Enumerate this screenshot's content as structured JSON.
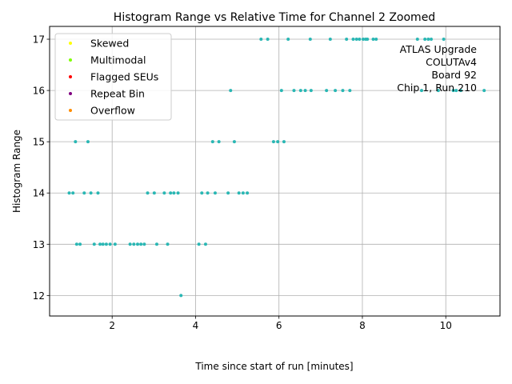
{
  "chart_data": {
    "type": "scatter",
    "title": "Histogram Range vs Relative Time for Channel 2 Zoomed",
    "xlabel": "Time since start of run [minutes]",
    "ylabel": "Histogram Range",
    "xlim": [
      0.5,
      11.3
    ],
    "ylim": [
      11.6,
      17.25
    ],
    "xticks": [
      2,
      4,
      6,
      8,
      10
    ],
    "yticks": [
      12,
      13,
      14,
      15,
      16,
      17
    ],
    "grid": true,
    "legend_position": "top-left",
    "legend": [
      {
        "label": "Skewed",
        "color": "#ffff00"
      },
      {
        "label": "Multimodal",
        "color": "#7fff00"
      },
      {
        "label": "Flagged SEUs",
        "color": "#ff0000"
      },
      {
        "label": "Repeat Bin",
        "color": "#800080"
      },
      {
        "label": "Overflow",
        "color": "#ff8c00"
      }
    ],
    "annotation_lines": [
      "ATLAS Upgrade",
      "COLUTAv4",
      "Board 92",
      "Chip 1, Run 210"
    ],
    "series": [
      {
        "name": "Channel 2",
        "color": "#2ab7b4",
        "points": [
          [
            5.57,
            17
          ],
          [
            5.73,
            17
          ],
          [
            6.22,
            17
          ],
          [
            6.75,
            17
          ],
          [
            7.23,
            17
          ],
          [
            7.62,
            17
          ],
          [
            7.78,
            17
          ],
          [
            7.86,
            17
          ],
          [
            7.93,
            17
          ],
          [
            8.02,
            17
          ],
          [
            8.08,
            17
          ],
          [
            8.12,
            17
          ],
          [
            8.26,
            17
          ],
          [
            8.33,
            17
          ],
          [
            9.32,
            17
          ],
          [
            9.5,
            17
          ],
          [
            9.58,
            17
          ],
          [
            9.65,
            17
          ],
          [
            9.95,
            17
          ],
          [
            4.84,
            16
          ],
          [
            6.06,
            16
          ],
          [
            6.36,
            16
          ],
          [
            6.52,
            16
          ],
          [
            6.63,
            16
          ],
          [
            6.77,
            16
          ],
          [
            7.14,
            16
          ],
          [
            7.35,
            16
          ],
          [
            7.53,
            16
          ],
          [
            7.7,
            16
          ],
          [
            9.42,
            16
          ],
          [
            9.82,
            16
          ],
          [
            10.18,
            16
          ],
          [
            10.25,
            16
          ],
          [
            10.36,
            16
          ],
          [
            10.92,
            16
          ],
          [
            1.12,
            15
          ],
          [
            1.42,
            15
          ],
          [
            4.41,
            15
          ],
          [
            4.56,
            15
          ],
          [
            4.93,
            15
          ],
          [
            5.87,
            15
          ],
          [
            5.97,
            15
          ],
          [
            6.12,
            15
          ],
          [
            0.97,
            14
          ],
          [
            1.06,
            14
          ],
          [
            1.33,
            14
          ],
          [
            1.49,
            14
          ],
          [
            1.66,
            14
          ],
          [
            2.85,
            14
          ],
          [
            3.01,
            14
          ],
          [
            3.25,
            14
          ],
          [
            3.4,
            14
          ],
          [
            3.48,
            14
          ],
          [
            3.58,
            14
          ],
          [
            4.15,
            14
          ],
          [
            4.29,
            14
          ],
          [
            4.47,
            14
          ],
          [
            4.78,
            14
          ],
          [
            5.04,
            14
          ],
          [
            5.14,
            14
          ],
          [
            5.24,
            14
          ],
          [
            1.15,
            13
          ],
          [
            1.23,
            13
          ],
          [
            1.57,
            13
          ],
          [
            1.71,
            13
          ],
          [
            1.78,
            13
          ],
          [
            1.86,
            13
          ],
          [
            1.95,
            13
          ],
          [
            2.07,
            13
          ],
          [
            2.43,
            13
          ],
          [
            2.52,
            13
          ],
          [
            2.61,
            13
          ],
          [
            2.69,
            13
          ],
          [
            2.77,
            13
          ],
          [
            3.07,
            13
          ],
          [
            3.33,
            13
          ],
          [
            4.08,
            13
          ],
          [
            4.24,
            13
          ],
          [
            3.65,
            12
          ]
        ]
      }
    ]
  }
}
